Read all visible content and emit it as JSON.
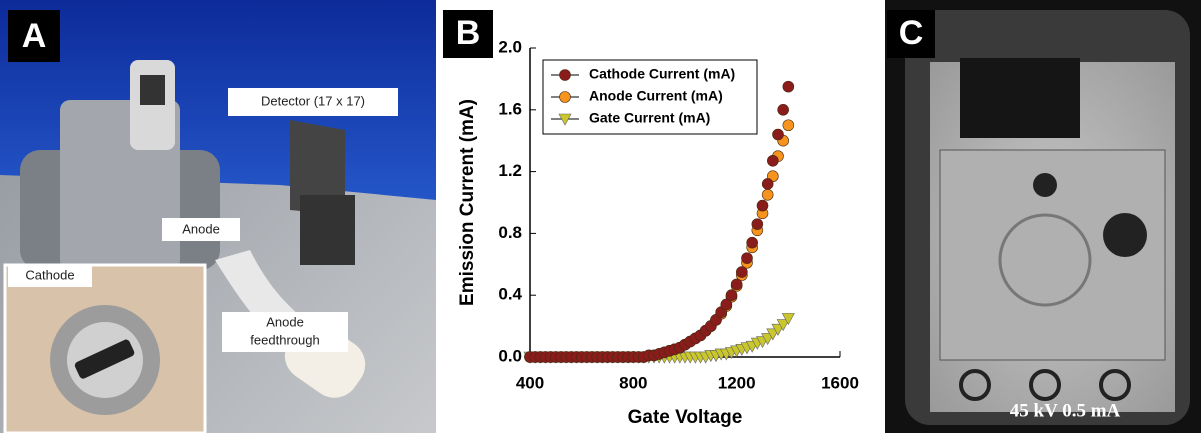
{
  "panels": {
    "a": {
      "label": "A",
      "detector": "Detector (17 x 17)",
      "anode": "Anode",
      "cathode": "Cathode",
      "feedthrough": [
        "Anode",
        "feedthrough"
      ]
    },
    "b": {
      "label": "B"
    },
    "c": {
      "label": "C",
      "caption": "45 kV 0.5 mA"
    }
  },
  "chart_data": {
    "type": "scatter",
    "x_label": "Gate Voltage",
    "y_label": "Emission Current (mA)",
    "x": [
      400,
      420,
      440,
      460,
      480,
      500,
      520,
      540,
      560,
      580,
      600,
      620,
      640,
      660,
      680,
      700,
      720,
      740,
      760,
      780,
      800,
      820,
      840,
      860,
      880,
      900,
      920,
      940,
      960,
      980,
      1000,
      1020,
      1040,
      1060,
      1080,
      1100,
      1120,
      1140,
      1160,
      1180,
      1200,
      1220,
      1240,
      1260,
      1280,
      1300,
      1320,
      1340,
      1360,
      1380,
      1400
    ],
    "series": [
      {
        "name": "Cathode Current (mA)",
        "color": "#8b1c1c",
        "marker": "circle",
        "values": [
          0,
          0,
          0,
          0,
          0,
          0,
          0,
          0,
          0,
          0,
          0,
          0,
          0,
          0,
          0,
          0,
          0,
          0,
          0,
          0,
          0,
          0,
          0,
          0.01,
          0.01,
          0.02,
          0.03,
          0.04,
          0.05,
          0.06,
          0.08,
          0.1,
          0.12,
          0.14,
          0.17,
          0.2,
          0.24,
          0.29,
          0.34,
          0.4,
          0.47,
          0.55,
          0.64,
          0.74,
          0.86,
          0.98,
          1.12,
          1.27,
          1.44,
          1.6,
          1.75
        ]
      },
      {
        "name": "Anode Current (mA)",
        "color": "#f7941d",
        "marker": "circle",
        "values": [
          0,
          0,
          0,
          0,
          0,
          0,
          0,
          0,
          0,
          0,
          0,
          0,
          0,
          0,
          0,
          0,
          0,
          0,
          0,
          0,
          0,
          0,
          0,
          0.01,
          0.01,
          0.02,
          0.03,
          0.04,
          0.05,
          0.06,
          0.08,
          0.1,
          0.12,
          0.14,
          0.17,
          0.2,
          0.24,
          0.28,
          0.33,
          0.39,
          0.46,
          0.53,
          0.61,
          0.71,
          0.82,
          0.93,
          1.05,
          1.17,
          1.3,
          1.4,
          1.5
        ]
      },
      {
        "name": "Gate Current (mA)",
        "color": "#c9c72b",
        "marker": "triangle-down",
        "values": [
          0,
          0,
          0,
          0,
          0,
          0,
          0,
          0,
          0,
          0,
          0,
          0,
          0,
          0,
          0,
          0,
          0,
          0,
          0,
          0,
          0,
          0,
          0,
          0,
          0,
          0,
          0,
          0,
          0,
          0,
          0,
          0,
          0,
          0,
          0,
          0.01,
          0.01,
          0.02,
          0.02,
          0.03,
          0.04,
          0.05,
          0.06,
          0.07,
          0.09,
          0.1,
          0.12,
          0.15,
          0.18,
          0.21,
          0.25
        ]
      }
    ],
    "xlim": [
      400,
      1600
    ],
    "xticks": [
      400,
      800,
      1200,
      1600
    ],
    "ylim": [
      0,
      2.0
    ],
    "yticks": [
      {
        "value": 0,
        "label": "0.0"
      },
      0.4,
      0.8,
      1.2,
      1.6,
      {
        "value": 2.0,
        "label": "2.0"
      }
    ],
    "legend": "upper-left",
    "grid": false
  }
}
